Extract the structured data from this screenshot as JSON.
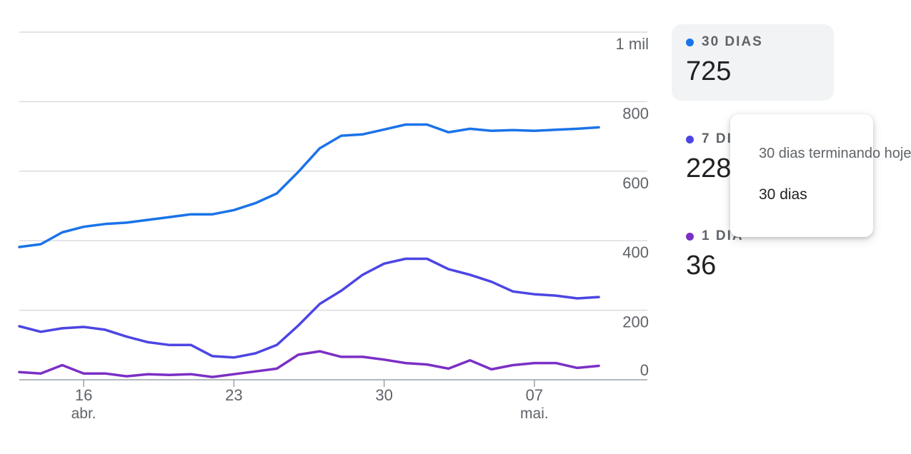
{
  "chart_data": {
    "type": "line",
    "title": "",
    "xlabel": "",
    "ylabel": "",
    "ylim": [
      0,
      1000
    ],
    "grid": true,
    "y_ticks": [
      {
        "value": 0,
        "label": "0"
      },
      {
        "value": 200,
        "label": "200"
      },
      {
        "value": 400,
        "label": "400"
      },
      {
        "value": 600,
        "label": "600"
      },
      {
        "value": 800,
        "label": "800"
      },
      {
        "value": 1000,
        "label": "1 mil"
      }
    ],
    "x_ticks": [
      {
        "index": 3,
        "label": "16",
        "sublabel": "abr."
      },
      {
        "index": 10,
        "label": "23",
        "sublabel": ""
      },
      {
        "index": 17,
        "label": "30",
        "sublabel": ""
      },
      {
        "index": 24,
        "label": "07",
        "sublabel": "mai."
      }
    ],
    "series": [
      {
        "name": "30 DIAS",
        "color": "#1a73e8",
        "values": [
          382,
          390,
          424,
          440,
          448,
          452,
          460,
          468,
          476,
          476,
          488,
          508,
          536,
          598,
          666,
          702,
          706,
          720,
          734,
          734,
          712,
          722,
          716,
          718,
          716,
          719,
          722,
          726
        ]
      },
      {
        "name": "7 DIAS",
        "color": "#4c45e3",
        "values": [
          154,
          138,
          148,
          152,
          144,
          124,
          108,
          100,
          100,
          68,
          64,
          76,
          100,
          156,
          218,
          256,
          302,
          334,
          348,
          348,
          318,
          302,
          282,
          254,
          246,
          242,
          234,
          238
        ]
      },
      {
        "name": "1 DIA",
        "color": "#7b2fc5",
        "values": [
          22,
          18,
          42,
          18,
          18,
          10,
          16,
          14,
          16,
          8,
          16,
          24,
          32,
          72,
          82,
          66,
          66,
          58,
          48,
          44,
          32,
          56,
          30,
          42,
          48,
          48,
          34,
          40
        ]
      }
    ]
  },
  "legend": {
    "items": [
      {
        "label": "30 DIAS",
        "value": "725",
        "color": "#1a73e8"
      },
      {
        "label": "7 DIAS",
        "value": "228",
        "color": "#4c45e3"
      },
      {
        "label": "1 DIA",
        "value": "36",
        "color": "#7b2fc5"
      }
    ]
  },
  "tooltip": {
    "title": "30 dias terminando hoje",
    "body": "30 dias"
  }
}
